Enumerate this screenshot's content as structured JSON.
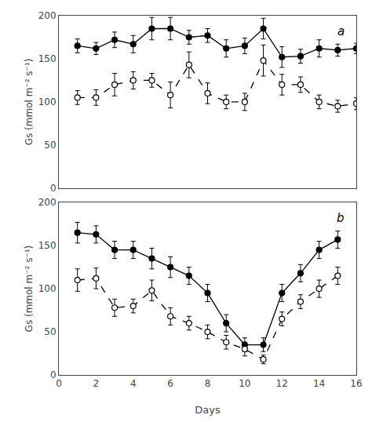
{
  "chart_data": [
    {
      "type": "line",
      "ylabel": "Gs (mmol m⁻² s⁻¹)",
      "annotation": "a",
      "x": [
        1,
        2,
        3,
        4,
        5,
        6,
        7,
        8,
        9,
        10,
        11,
        12,
        13,
        14,
        15,
        16
      ],
      "series": [
        {
          "color": "#000000",
          "marker": "circle",
          "line_style": "solid",
          "values": [
            165,
            162,
            172,
            167,
            185,
            185,
            175,
            177,
            162,
            165,
            185,
            152,
            153,
            162,
            160,
            162
          ],
          "errors": [
            8,
            7,
            9,
            10,
            13,
            13,
            8,
            8,
            10,
            9,
            12,
            12,
            8,
            10,
            7,
            6
          ]
        },
        {
          "color": "#000000",
          "marker": "circle-open",
          "line_style": "dashed",
          "values": [
            105,
            105,
            120,
            125,
            125,
            108,
            143,
            110,
            100,
            100,
            148,
            120,
            120,
            100,
            95,
            98
          ],
          "errors": [
            8,
            9,
            13,
            10,
            8,
            15,
            15,
            12,
            8,
            10,
            18,
            12,
            9,
            8,
            7,
            7
          ]
        }
      ],
      "xlim": [
        0,
        16
      ],
      "ylim": [
        0,
        200
      ],
      "xticks": [
        0,
        2,
        4,
        6,
        8,
        10,
        12,
        14,
        16
      ],
      "yticks": [
        0,
        50,
        100,
        150,
        200
      ],
      "grid": false,
      "tick_labels": "y"
    },
    {
      "type": "line",
      "xlabel": "Days",
      "ylabel": "Gs (mmol m⁻² s⁻¹)",
      "annotation": "b",
      "x": [
        1,
        2,
        3,
        4,
        5,
        6,
        7,
        8,
        9,
        10,
        11,
        12,
        13,
        14,
        15
      ],
      "series": [
        {
          "color": "#000000",
          "marker": "circle",
          "line_style": "solid",
          "values": [
            165,
            163,
            145,
            145,
            135,
            125,
            115,
            95,
            60,
            35,
            35,
            95,
            118,
            145,
            157
          ],
          "errors": [
            12,
            10,
            10,
            10,
            12,
            12,
            10,
            10,
            10,
            8,
            8,
            10,
            10,
            10,
            10
          ]
        },
        {
          "color": "#000000",
          "marker": "circle-open",
          "line_style": "dashed",
          "values": [
            110,
            112,
            78,
            80,
            98,
            68,
            60,
            50,
            38,
            30,
            18,
            65,
            85,
            100,
            115
          ],
          "errors": [
            13,
            12,
            10,
            8,
            12,
            10,
            8,
            8,
            8,
            8,
            5,
            8,
            8,
            10,
            10
          ]
        }
      ],
      "xlim": [
        0,
        16
      ],
      "ylim": [
        0,
        200
      ],
      "xticks": [
        0,
        2,
        4,
        6,
        8,
        10,
        12,
        14,
        16
      ],
      "yticks": [
        0,
        50,
        100,
        150,
        200
      ],
      "grid": false
    }
  ]
}
